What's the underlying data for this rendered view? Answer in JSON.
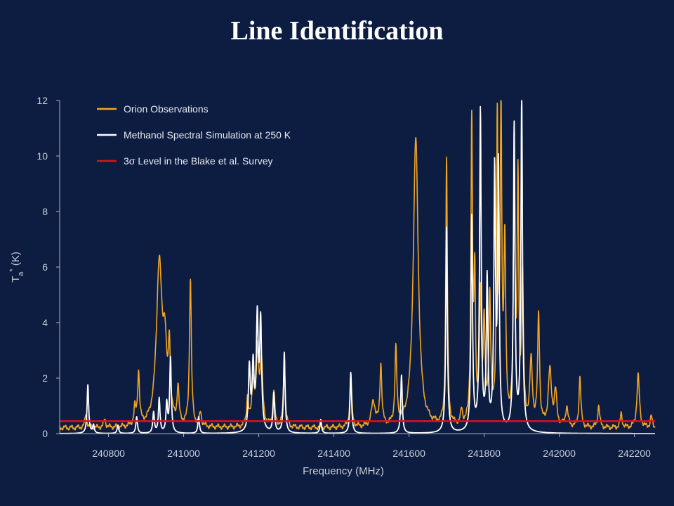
{
  "title": "Line Identification",
  "chart_data": {
    "type": "line",
    "title": "",
    "xlabel": "Frequency (MHz)",
    "ylabel": "T",
    "ylabel_sub": "a",
    "ylabel_sup": "*",
    "ylabel_unit": " (K)",
    "xlim": [
      240670,
      242255
    ],
    "ylim": [
      0,
      12
    ],
    "x_ticks": [
      240800,
      241000,
      241200,
      241400,
      241600,
      241800,
      242000,
      242200
    ],
    "x_tick_labels": [
      "240800",
      "241000",
      "241200",
      "241400",
      "241600",
      "241800",
      "242000",
      "242200"
    ],
    "y_ticks": [
      0,
      2,
      4,
      6,
      8,
      10,
      12
    ],
    "y_tick_labels": [
      "0",
      "2",
      "4",
      "6",
      "8",
      "10",
      "12"
    ],
    "grid": false,
    "legend_position": "top-left",
    "series": [
      {
        "name": "Orion Observations",
        "color": "#f2a623",
        "baseline": 0.2,
        "peaks": [
          [
            240740,
            0.5,
            3
          ],
          [
            240790,
            0.3,
            3
          ],
          [
            240870,
            0.6,
            3
          ],
          [
            240880,
            1.9,
            3
          ],
          [
            240935,
            5.8,
            9
          ],
          [
            240950,
            2.4,
            6
          ],
          [
            240962,
            2.5,
            3
          ],
          [
            240985,
            1.3,
            3
          ],
          [
            241018,
            5.3,
            3
          ],
          [
            241045,
            0.5,
            3
          ],
          [
            241170,
            1.0,
            3
          ],
          [
            241185,
            1.6,
            4
          ],
          [
            241197,
            2.6,
            4
          ],
          [
            241207,
            2.2,
            4
          ],
          [
            241240,
            1.3,
            3
          ],
          [
            241268,
            2.3,
            3
          ],
          [
            241445,
            1.9,
            3
          ],
          [
            241505,
            0.9,
            6
          ],
          [
            241525,
            2.2,
            3
          ],
          [
            241565,
            2.7,
            3
          ],
          [
            241618,
            10.4,
            8
          ],
          [
            241700,
            9.6,
            2.5
          ],
          [
            241740,
            0.5,
            3
          ],
          [
            241767,
            10.8,
            2.5
          ],
          [
            241775,
            5.0,
            2.5
          ],
          [
            241790,
            4.5,
            3
          ],
          [
            241800,
            3.5,
            3
          ],
          [
            241815,
            4.5,
            3
          ],
          [
            241835,
            10.7,
            2.5
          ],
          [
            241845,
            10.9,
            2.5
          ],
          [
            241855,
            6.2,
            3
          ],
          [
            241880,
            9.6,
            2.5
          ],
          [
            241890,
            8.6,
            2.5
          ],
          [
            241902,
            5.2,
            3
          ],
          [
            241925,
            2.3,
            4
          ],
          [
            241945,
            4.0,
            3
          ],
          [
            241975,
            2.0,
            5
          ],
          [
            241990,
            1.2,
            4
          ],
          [
            242020,
            0.7,
            4
          ],
          [
            242055,
            1.8,
            3
          ],
          [
            242105,
            0.8,
            3
          ],
          [
            242165,
            0.5,
            3
          ],
          [
            242210,
            1.9,
            4
          ],
          [
            242245,
            0.4,
            3
          ]
        ]
      },
      {
        "name": "Methanol Spectral Simulation at 250 K",
        "color": "#ffffff",
        "baseline": 0,
        "peaks": [
          [
            240745,
            1.75,
            2.5
          ],
          [
            240760,
            0.3,
            2.5
          ],
          [
            240825,
            0.3,
            2.5
          ],
          [
            240875,
            0.6,
            2.5
          ],
          [
            240920,
            0.75,
            2.5
          ],
          [
            240935,
            1.25,
            2.5
          ],
          [
            240955,
            1.05,
            2.5
          ],
          [
            240965,
            2.7,
            2.5
          ],
          [
            241040,
            0.6,
            2.5
          ],
          [
            241175,
            2.3,
            3
          ],
          [
            241185,
            2.3,
            3
          ],
          [
            241196,
            4.0,
            3
          ],
          [
            241205,
            3.9,
            3
          ],
          [
            241240,
            1.4,
            2.5
          ],
          [
            241268,
            2.9,
            2.5
          ],
          [
            241365,
            0.5,
            2.5
          ],
          [
            241445,
            2.2,
            2.5
          ],
          [
            241580,
            2.1,
            2.5
          ],
          [
            241700,
            7.4,
            2.5
          ],
          [
            241767,
            7.7,
            2.5
          ],
          [
            241790,
            11.5,
            2.5
          ],
          [
            241808,
            5.4,
            2.5
          ],
          [
            241828,
            9.2,
            2.5
          ],
          [
            241838,
            9.4,
            2.5
          ],
          [
            241880,
            11.0,
            2.5
          ],
          [
            241900,
            12.0,
            2.5
          ]
        ]
      },
      {
        "name": "3σ Level in the Blake et al. Survey",
        "color": "#d4151c",
        "constant": 0.45
      }
    ]
  }
}
